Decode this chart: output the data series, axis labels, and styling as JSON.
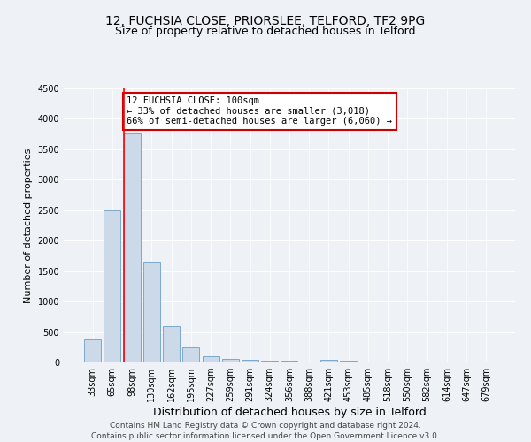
{
  "title": "12, FUCHSIA CLOSE, PRIORSLEE, TELFORD, TF2 9PG",
  "subtitle": "Size of property relative to detached houses in Telford",
  "xlabel": "Distribution of detached houses by size in Telford",
  "ylabel": "Number of detached properties",
  "categories": [
    "33sqm",
    "65sqm",
    "98sqm",
    "130sqm",
    "162sqm",
    "195sqm",
    "227sqm",
    "259sqm",
    "291sqm",
    "324sqm",
    "356sqm",
    "388sqm",
    "421sqm",
    "453sqm",
    "485sqm",
    "518sqm",
    "550sqm",
    "582sqm",
    "614sqm",
    "647sqm",
    "679sqm"
  ],
  "values": [
    380,
    2500,
    3760,
    1650,
    600,
    240,
    100,
    60,
    40,
    30,
    30,
    0,
    50,
    30,
    0,
    0,
    0,
    0,
    0,
    0,
    0
  ],
  "bar_color": "#ccd9e8",
  "bar_edge_color": "#7aa8cc",
  "red_line_index": 2,
  "ylim": [
    0,
    4500
  ],
  "yticks": [
    0,
    500,
    1000,
    1500,
    2000,
    2500,
    3000,
    3500,
    4000,
    4500
  ],
  "annotation_title": "12 FUCHSIA CLOSE: 100sqm",
  "annotation_line1": "← 33% of detached houses are smaller (3,018)",
  "annotation_line2": "66% of semi-detached houses are larger (6,060) →",
  "annotation_box_color": "#ffffff",
  "annotation_box_edge": "#cc0000",
  "footer_line1": "Contains HM Land Registry data © Crown copyright and database right 2024.",
  "footer_line2": "Contains public sector information licensed under the Open Government Licence v3.0.",
  "background_color": "#eef2f7",
  "grid_color": "#ffffff",
  "title_fontsize": 10,
  "subtitle_fontsize": 9,
  "xlabel_fontsize": 9,
  "ylabel_fontsize": 8,
  "tick_fontsize": 7,
  "annotation_fontsize": 7.5,
  "footer_fontsize": 6.5
}
